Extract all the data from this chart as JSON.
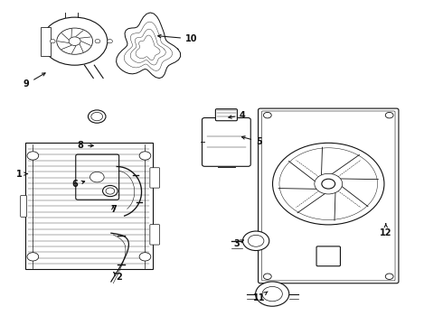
{
  "bg_color": "#ffffff",
  "line_color": "#111111",
  "labels_config": [
    [
      1,
      0.042,
      0.535,
      0.068,
      0.535
    ],
    [
      2,
      0.268,
      0.855,
      0.255,
      0.838
    ],
    [
      3,
      0.535,
      0.75,
      0.552,
      0.738
    ],
    [
      4,
      0.548,
      0.355,
      0.508,
      0.362
    ],
    [
      5,
      0.585,
      0.435,
      0.538,
      0.418
    ],
    [
      6,
      0.168,
      0.568,
      0.198,
      0.555
    ],
    [
      7,
      0.255,
      0.645,
      0.255,
      0.625
    ],
    [
      8,
      0.18,
      0.448,
      0.218,
      0.448
    ],
    [
      9,
      0.058,
      0.258,
      0.108,
      0.218
    ],
    [
      10,
      0.432,
      0.118,
      0.348,
      0.108
    ],
    [
      11,
      0.585,
      0.918,
      0.605,
      0.898
    ],
    [
      12,
      0.872,
      0.718,
      0.872,
      0.688
    ]
  ]
}
